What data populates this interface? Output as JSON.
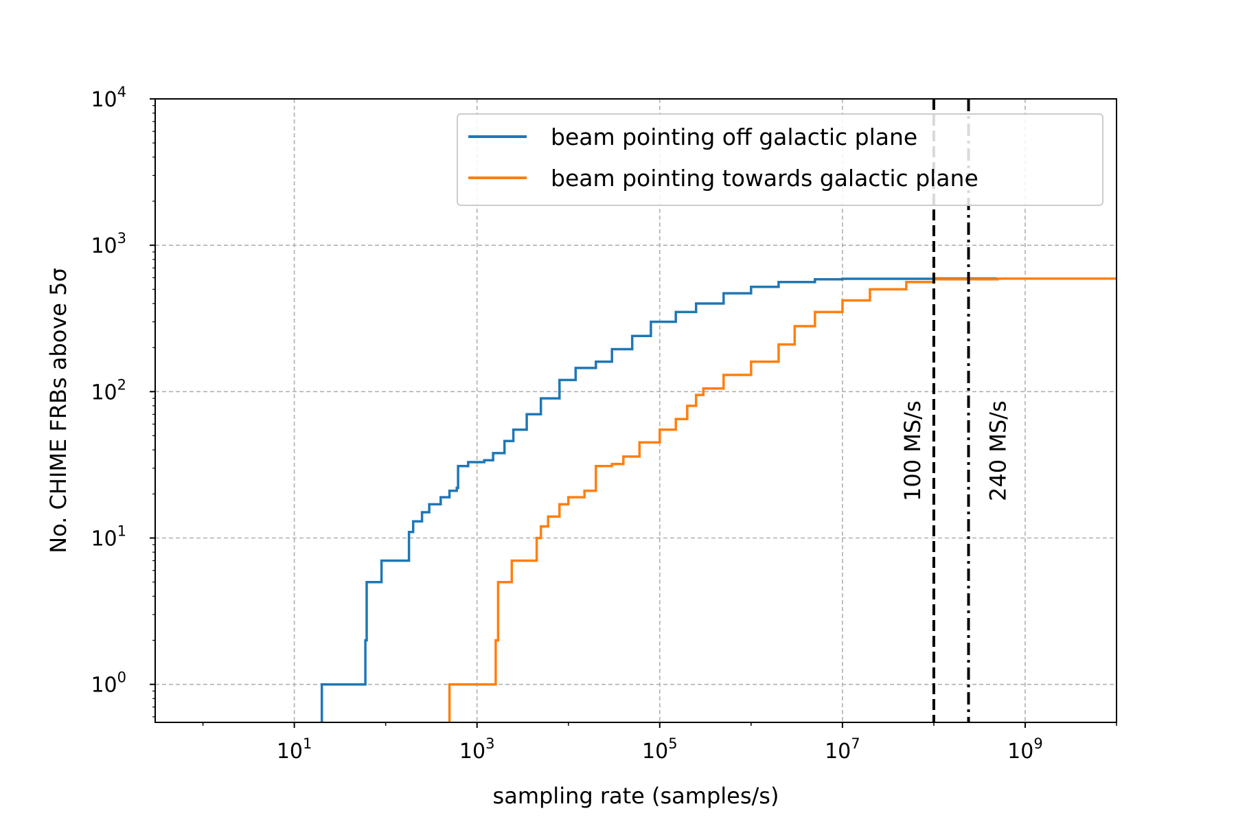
{
  "chart_data": {
    "type": "line",
    "xlabel": "sampling rate (samples/s)",
    "ylabel": "No. CHIME FRBs above 5σ",
    "x_scale": "log",
    "y_scale": "log",
    "xlim": [
      0.3,
      10000000000
    ],
    "ylim": [
      0.55,
      10000
    ],
    "grid": true,
    "legend_position": "upper-right",
    "x_ticks": [
      {
        "value": 10,
        "base": "10",
        "exp": "1"
      },
      {
        "value": 1000,
        "base": "10",
        "exp": "3"
      },
      {
        "value": 100000,
        "base": "10",
        "exp": "5"
      },
      {
        "value": 10000000,
        "base": "10",
        "exp": "7"
      },
      {
        "value": 1000000000,
        "base": "10",
        "exp": "9"
      }
    ],
    "y_ticks": [
      {
        "value": 1,
        "base": "10",
        "exp": "0"
      },
      {
        "value": 10,
        "base": "10",
        "exp": "1"
      },
      {
        "value": 100,
        "base": "10",
        "exp": "2"
      },
      {
        "value": 1000,
        "base": "10",
        "exp": "3"
      },
      {
        "value": 10000,
        "base": "10",
        "exp": "4"
      }
    ],
    "series": [
      {
        "name": "beam pointing off galactic plane",
        "color": "#1f77b4",
        "step": true,
        "points": [
          [
            20,
            0.55
          ],
          [
            20,
            1
          ],
          [
            60,
            1
          ],
          [
            60,
            2
          ],
          [
            62,
            5
          ],
          [
            90,
            5
          ],
          [
            90,
            7
          ],
          [
            180,
            7
          ],
          [
            180,
            11
          ],
          [
            200,
            13
          ],
          [
            250,
            15
          ],
          [
            300,
            17
          ],
          [
            400,
            19
          ],
          [
            500,
            21
          ],
          [
            600,
            22
          ],
          [
            620,
            31
          ],
          [
            800,
            31
          ],
          [
            800,
            33
          ],
          [
            1200,
            34
          ],
          [
            1500,
            38
          ],
          [
            2000,
            46
          ],
          [
            2500,
            55
          ],
          [
            3500,
            70
          ],
          [
            5000,
            90
          ],
          [
            8000,
            120
          ],
          [
            12000,
            145
          ],
          [
            20000,
            160
          ],
          [
            30000,
            195
          ],
          [
            50000,
            240
          ],
          [
            80000,
            300
          ],
          [
            150000,
            350
          ],
          [
            250000,
            400
          ],
          [
            500000,
            470
          ],
          [
            1000000,
            520
          ],
          [
            2000000,
            560
          ],
          [
            5000000,
            585
          ],
          [
            10000000,
            590
          ],
          [
            100000000,
            592
          ],
          [
            10000000000,
            592
          ]
        ]
      },
      {
        "name": "beam pointing towards galactic plane",
        "color": "#ff7f0e",
        "step": true,
        "points": [
          [
            500,
            0.55
          ],
          [
            500,
            1
          ],
          [
            1600,
            1
          ],
          [
            1600,
            2
          ],
          [
            1700,
            5
          ],
          [
            2300,
            5
          ],
          [
            2400,
            7
          ],
          [
            4500,
            7
          ],
          [
            4500,
            10
          ],
          [
            5000,
            12
          ],
          [
            6000,
            14
          ],
          [
            8000,
            17
          ],
          [
            10000,
            19
          ],
          [
            15000,
            21
          ],
          [
            20000,
            22
          ],
          [
            20000,
            31
          ],
          [
            25000,
            31
          ],
          [
            30000,
            32
          ],
          [
            40000,
            36
          ],
          [
            60000,
            45
          ],
          [
            100000,
            55
          ],
          [
            150000,
            65
          ],
          [
            200000,
            80
          ],
          [
            250000,
            95
          ],
          [
            300000,
            105
          ],
          [
            500000,
            130
          ],
          [
            1000000,
            160
          ],
          [
            2000000,
            210
          ],
          [
            3000000,
            280
          ],
          [
            5000000,
            350
          ],
          [
            10000000,
            420
          ],
          [
            20000000,
            500
          ],
          [
            50000000,
            560
          ],
          [
            100000000,
            585
          ],
          [
            500000000,
            592
          ],
          [
            10000000000,
            592
          ]
        ]
      }
    ],
    "vlines": [
      {
        "x": 100000000,
        "label": "100 MS/s",
        "style": "dashed",
        "color": "#000000"
      },
      {
        "x": 240000000,
        "label": "240  MS/s",
        "style": "dashdot",
        "color": "#000000"
      }
    ]
  }
}
